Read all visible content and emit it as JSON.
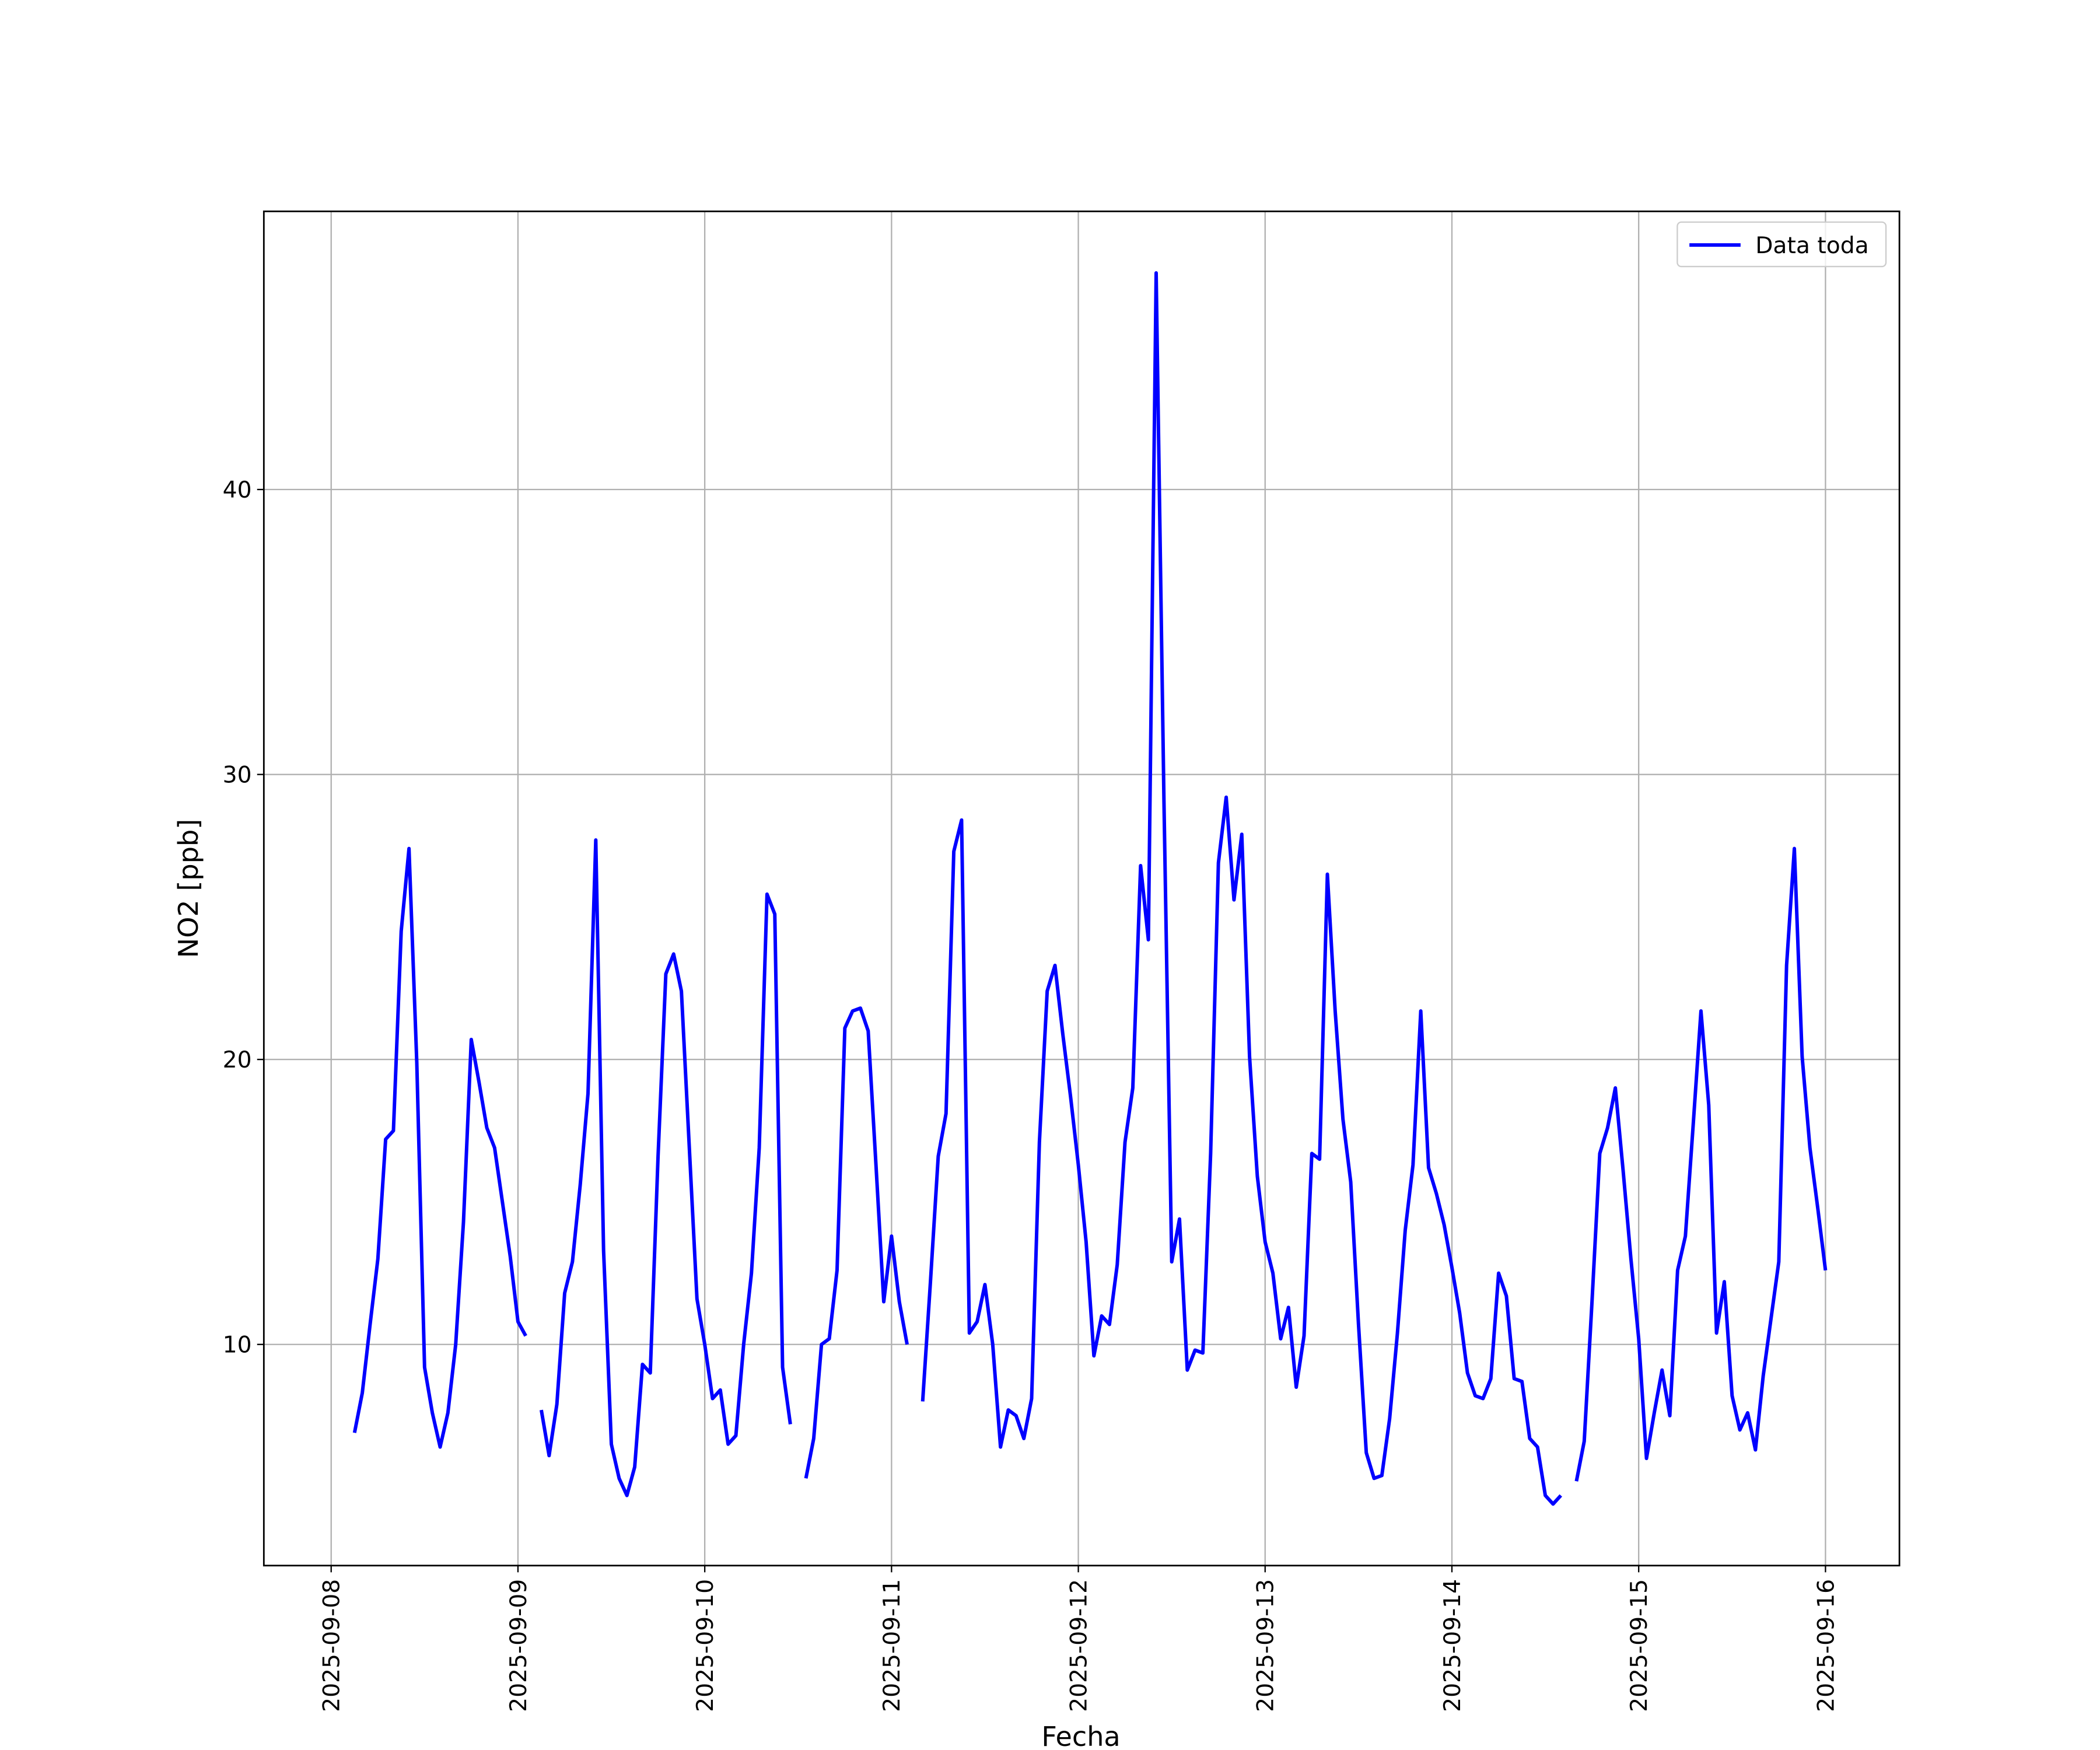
{
  "chart_data": {
    "type": "line",
    "xlabel": "Fecha",
    "ylabel": "NO2 [ppb]",
    "x": [
      "2025-09-08 03:00",
      "2025-09-08 04:00",
      "2025-09-08 05:00",
      "2025-09-08 06:00",
      "2025-09-08 07:00",
      "2025-09-08 08:00",
      "2025-09-08 09:00",
      "2025-09-08 10:00",
      "2025-09-08 11:00",
      "2025-09-08 12:00",
      "2025-09-08 13:00",
      "2025-09-08 14:00",
      "2025-09-08 15:00",
      "2025-09-08 16:00",
      "2025-09-08 17:00",
      "2025-09-08 18:00",
      "2025-09-08 19:00",
      "2025-09-08 20:00",
      "2025-09-08 21:00",
      "2025-09-08 22:00",
      "2025-09-08 23:00",
      "2025-09-09 00:00",
      "2025-09-09 01:00",
      "2025-09-09 02:00",
      "2025-09-09 03:00",
      "2025-09-09 04:00",
      "2025-09-09 05:00",
      "2025-09-09 06:00",
      "2025-09-09 07:00",
      "2025-09-09 08:00",
      "2025-09-09 09:00",
      "2025-09-09 10:00",
      "2025-09-09 11:00",
      "2025-09-09 12:00",
      "2025-09-09 13:00",
      "2025-09-09 14:00",
      "2025-09-09 15:00",
      "2025-09-09 16:00",
      "2025-09-09 17:00",
      "2025-09-09 18:00",
      "2025-09-09 19:00",
      "2025-09-09 20:00",
      "2025-09-09 21:00",
      "2025-09-09 22:00",
      "2025-09-09 23:00",
      "2025-09-10 00:00",
      "2025-09-10 01:00",
      "2025-09-10 02:00",
      "2025-09-10 03:00",
      "2025-09-10 04:00",
      "2025-09-10 05:00",
      "2025-09-10 06:00",
      "2025-09-10 07:00",
      "2025-09-10 08:00",
      "2025-09-10 09:00",
      "2025-09-10 10:00",
      "2025-09-10 11:00",
      "2025-09-10 12:00",
      "2025-09-10 13:00",
      "2025-09-10 14:00",
      "2025-09-10 15:00",
      "2025-09-10 16:00",
      "2025-09-10 17:00",
      "2025-09-10 18:00",
      "2025-09-10 19:00",
      "2025-09-10 20:00",
      "2025-09-10 21:00",
      "2025-09-10 22:00",
      "2025-09-10 23:00",
      "2025-09-11 00:00",
      "2025-09-11 01:00",
      "2025-09-11 02:00",
      "2025-09-11 03:00",
      "2025-09-11 04:00",
      "2025-09-11 05:00",
      "2025-09-11 06:00",
      "2025-09-11 07:00",
      "2025-09-11 08:00",
      "2025-09-11 09:00",
      "2025-09-11 10:00",
      "2025-09-11 11:00",
      "2025-09-11 12:00",
      "2025-09-11 13:00",
      "2025-09-11 14:00",
      "2025-09-11 15:00",
      "2025-09-11 16:00",
      "2025-09-11 17:00",
      "2025-09-11 18:00",
      "2025-09-11 19:00",
      "2025-09-11 20:00",
      "2025-09-11 21:00",
      "2025-09-11 22:00",
      "2025-09-11 23:00",
      "2025-09-12 00:00",
      "2025-09-12 01:00",
      "2025-09-12 02:00",
      "2025-09-12 03:00",
      "2025-09-12 04:00",
      "2025-09-12 05:00",
      "2025-09-12 06:00",
      "2025-09-12 07:00",
      "2025-09-12 08:00",
      "2025-09-12 09:00",
      "2025-09-12 10:00",
      "2025-09-12 11:00",
      "2025-09-12 12:00",
      "2025-09-12 13:00",
      "2025-09-12 14:00",
      "2025-09-12 15:00",
      "2025-09-12 16:00",
      "2025-09-12 17:00",
      "2025-09-12 18:00",
      "2025-09-12 19:00",
      "2025-09-12 20:00",
      "2025-09-12 21:00",
      "2025-09-12 22:00",
      "2025-09-12 23:00",
      "2025-09-13 00:00",
      "2025-09-13 01:00",
      "2025-09-13 02:00",
      "2025-09-13 03:00",
      "2025-09-13 04:00",
      "2025-09-13 05:00",
      "2025-09-13 06:00",
      "2025-09-13 07:00",
      "2025-09-13 08:00",
      "2025-09-13 09:00",
      "2025-09-13 10:00",
      "2025-09-13 11:00",
      "2025-09-13 12:00",
      "2025-09-13 13:00",
      "2025-09-13 14:00",
      "2025-09-13 15:00",
      "2025-09-13 16:00",
      "2025-09-13 17:00",
      "2025-09-13 18:00",
      "2025-09-13 19:00",
      "2025-09-13 20:00",
      "2025-09-13 21:00",
      "2025-09-13 22:00",
      "2025-09-13 23:00",
      "2025-09-14 00:00",
      "2025-09-14 01:00",
      "2025-09-14 02:00",
      "2025-09-14 03:00",
      "2025-09-14 04:00",
      "2025-09-14 05:00",
      "2025-09-14 06:00",
      "2025-09-14 07:00",
      "2025-09-14 08:00",
      "2025-09-14 09:00",
      "2025-09-14 10:00",
      "2025-09-14 11:00",
      "2025-09-14 12:00",
      "2025-09-14 13:00",
      "2025-09-14 14:00",
      "2025-09-14 15:00",
      "2025-09-14 16:00",
      "2025-09-14 17:00",
      "2025-09-14 18:00",
      "2025-09-14 19:00",
      "2025-09-14 20:00",
      "2025-09-14 21:00",
      "2025-09-14 22:00",
      "2025-09-14 23:00",
      "2025-09-15 00:00",
      "2025-09-15 01:00",
      "2025-09-15 02:00",
      "2025-09-15 03:00",
      "2025-09-15 04:00",
      "2025-09-15 05:00",
      "2025-09-15 06:00",
      "2025-09-15 07:00",
      "2025-09-15 08:00",
      "2025-09-15 09:00",
      "2025-09-15 10:00",
      "2025-09-15 11:00",
      "2025-09-15 12:00",
      "2025-09-15 13:00",
      "2025-09-15 14:00",
      "2025-09-15 15:00",
      "2025-09-15 16:00",
      "2025-09-15 17:00",
      "2025-09-15 18:00",
      "2025-09-15 19:00",
      "2025-09-15 20:00",
      "2025-09-15 21:00",
      "2025-09-15 22:00",
      "2025-09-15 23:00",
      "2025-09-16 00:00"
    ],
    "series": [
      {
        "name": "Data toda",
        "color": "#0000ff",
        "values": [
          6.9,
          8.3,
          10.7,
          13.0,
          17.2,
          17.5,
          24.5,
          27.4,
          19.9,
          9.2,
          7.6,
          6.4,
          7.6,
          10.0,
          14.3,
          20.7,
          19.2,
          17.6,
          16.9,
          15.0,
          13.1,
          10.8,
          10.3,
          null,
          7.7,
          6.1,
          7.9,
          11.8,
          12.9,
          15.6,
          18.8,
          27.7,
          13.3,
          6.5,
          5.3,
          4.7,
          5.7,
          9.3,
          9.0,
          16.6,
          23.0,
          23.7,
          22.4,
          17.0,
          11.6,
          10.0,
          8.1,
          8.4,
          6.5,
          6.8,
          10.0,
          12.5,
          16.9,
          25.8,
          25.1,
          9.2,
          7.2,
          null,
          5.3,
          6.7,
          10.0,
          10.2,
          12.6,
          21.1,
          21.7,
          21.8,
          21.0,
          16.3,
          11.5,
          13.8,
          11.5,
          10.0,
          null,
          8.0,
          12.2,
          16.6,
          18.1,
          27.3,
          28.4,
          10.4,
          10.8,
          12.1,
          10.0,
          6.4,
          7.7,
          7.5,
          6.7,
          8.1,
          17.1,
          22.4,
          23.3,
          20.9,
          18.7,
          16.3,
          13.6,
          9.6,
          11.0,
          10.7,
          12.8,
          17.1,
          19.0,
          26.8,
          24.2,
          47.6,
          29.1,
          12.9,
          14.4,
          9.1,
          9.8,
          9.7,
          16.7,
          26.9,
          29.2,
          25.6,
          27.9,
          20.1,
          15.9,
          13.6,
          12.5,
          10.2,
          11.3,
          8.5,
          10.3,
          16.7,
          16.5,
          26.5,
          21.7,
          17.9,
          15.7,
          10.7,
          6.2,
          5.3,
          5.4,
          7.4,
          10.4,
          14.0,
          16.3,
          21.7,
          16.2,
          15.3,
          14.2,
          12.7,
          11.1,
          9.0,
          8.2,
          8.1,
          8.8,
          12.5,
          11.7,
          8.8,
          8.7,
          6.7,
          6.4,
          4.7,
          4.4,
          4.7,
          null,
          5.2,
          6.6,
          11.5,
          16.7,
          17.6,
          19.0,
          16.1,
          13.0,
          10.2,
          6.0,
          7.6,
          9.1,
          7.5,
          12.6,
          13.8,
          17.7,
          21.7,
          18.4,
          10.4,
          12.2,
          8.2,
          7.0,
          7.6,
          6.3,
          8.9,
          10.9,
          12.9,
          23.3,
          27.4,
          20.1,
          16.9,
          14.8,
          12.6
        ]
      }
    ],
    "xlim": [
      "2025-09-07 15:21",
      "2025-09-16 09:30"
    ],
    "xticks": [
      "2025-09-08",
      "2025-09-09",
      "2025-09-10",
      "2025-09-11",
      "2025-09-12",
      "2025-09-13",
      "2025-09-14",
      "2025-09-15",
      "2025-09-16"
    ],
    "ylim": [
      2.24,
      49.76
    ],
    "yticks": [
      10,
      20,
      30,
      40
    ],
    "grid": true,
    "legend": "upper right"
  }
}
